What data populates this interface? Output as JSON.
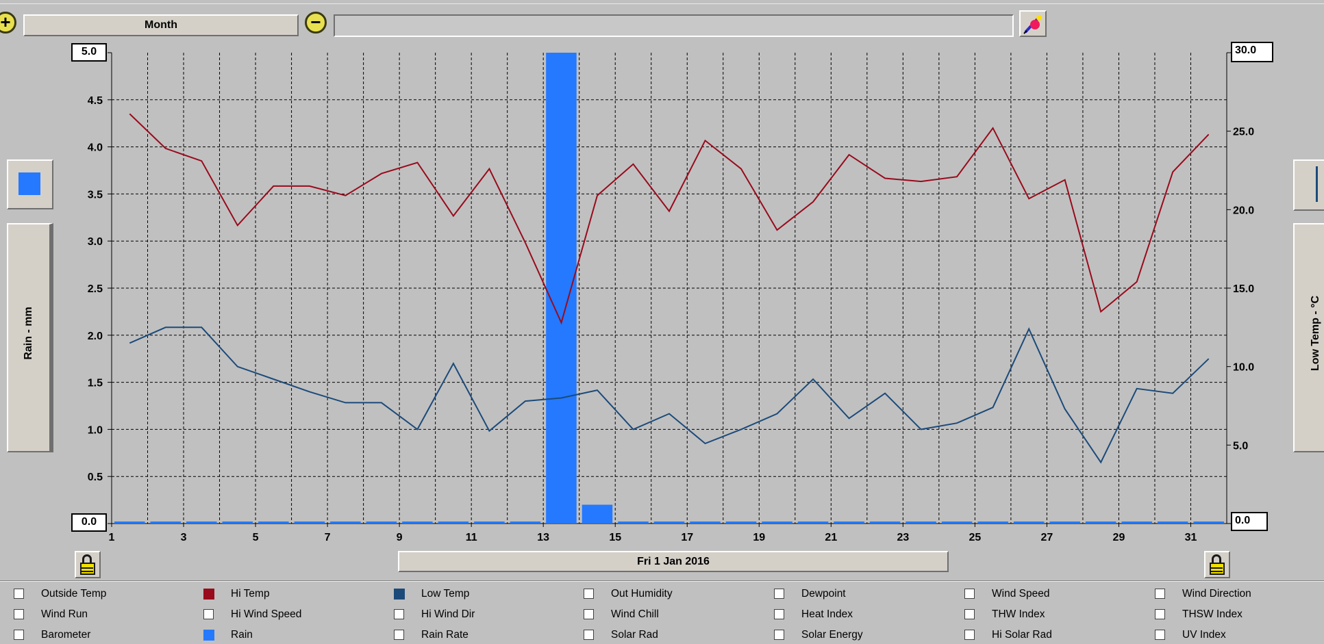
{
  "toolbar": {
    "zoom_in_glyph": "+",
    "period_label": "Month",
    "zoom_out_glyph": "−",
    "status_text": ""
  },
  "left_panel": {
    "swatch_color": "#2479ff",
    "axis_label": "Rain - mm"
  },
  "right_panel": {
    "axis_label": "Low Temp - °C"
  },
  "date_label": "Fri 1 Jan 2016",
  "colors": {
    "hi_temp": "#990a1c",
    "low_temp": "#1b4a7a",
    "rain": "#2479ff"
  },
  "chart_data": {
    "type": "line",
    "x": [
      1,
      2,
      3,
      4,
      5,
      6,
      7,
      8,
      9,
      10,
      11,
      12,
      13,
      14,
      15,
      16,
      17,
      18,
      19,
      20,
      21,
      22,
      23,
      24,
      25,
      26,
      27,
      28,
      29,
      30,
      31
    ],
    "x_ticks": [
      1,
      3,
      5,
      7,
      9,
      11,
      13,
      15,
      17,
      19,
      21,
      23,
      25,
      27,
      29,
      31
    ],
    "xlim": [
      1,
      32
    ],
    "left_axis": {
      "label": "Rain - mm",
      "ylim": [
        0,
        5.0
      ],
      "ticks": [
        "5.0",
        "4.5",
        "4.0",
        "3.5",
        "3.0",
        "2.5",
        "2.0",
        "1.5",
        "1.0",
        "0.5",
        "0.0"
      ]
    },
    "right_axis": {
      "label": "Low Temp - °C",
      "ylim": [
        0,
        30.0
      ],
      "ticks": [
        "30.0",
        "25.0",
        "20.0",
        "15.0",
        "10.0",
        "5.0",
        "0.0"
      ]
    },
    "grid": true,
    "series": [
      {
        "name": "Hi Temp",
        "axis": "right",
        "values": [
          26.1,
          23.9,
          23.1,
          19.0,
          21.5,
          21.5,
          20.9,
          22.3,
          23.0,
          19.6,
          22.6,
          17.9,
          12.8,
          20.9,
          22.9,
          19.9,
          24.4,
          22.6,
          18.7,
          20.5,
          23.5,
          22.0,
          21.8,
          22.1,
          25.2,
          20.7,
          21.9,
          13.5,
          15.4,
          22.4,
          24.8
        ]
      },
      {
        "name": "Low Temp",
        "axis": "right",
        "values": [
          11.5,
          12.5,
          12.5,
          10.0,
          9.2,
          8.4,
          7.7,
          7.7,
          6.0,
          10.2,
          5.9,
          7.8,
          8.0,
          8.5,
          6.0,
          7.0,
          5.1,
          6.0,
          7.0,
          9.2,
          6.7,
          8.3,
          6.0,
          6.4,
          7.4,
          12.4,
          7.3,
          3.9,
          8.6,
          8.3,
          10.5
        ]
      },
      {
        "name": "Rain",
        "axis": "left",
        "type": "bar",
        "values": [
          0,
          0,
          0,
          0,
          0,
          0,
          0,
          0,
          0,
          0,
          0,
          0,
          5.0,
          0.2,
          0,
          0,
          0,
          0,
          0,
          0,
          0,
          0,
          0,
          0,
          0,
          0,
          0,
          0,
          0,
          0,
          0
        ]
      }
    ]
  },
  "legend": {
    "rows": [
      [
        {
          "label": "Outside Temp",
          "checked": false,
          "color": null
        },
        {
          "label": "Hi Temp",
          "checked": true,
          "color": "#990a1c"
        },
        {
          "label": "Low Temp",
          "checked": true,
          "color": "#1b4a7a"
        },
        {
          "label": "Out Humidity",
          "checked": false,
          "color": null
        },
        {
          "label": "Dewpoint",
          "checked": false,
          "color": null
        },
        {
          "label": "Wind Speed",
          "checked": false,
          "color": null
        },
        {
          "label": "Wind Direction",
          "checked": false,
          "color": null
        }
      ],
      [
        {
          "label": "Wind Run",
          "checked": false,
          "color": null
        },
        {
          "label": "Hi Wind Speed",
          "checked": false,
          "color": null
        },
        {
          "label": "Hi Wind Dir",
          "checked": false,
          "color": null
        },
        {
          "label": "Wind Chill",
          "checked": false,
          "color": null
        },
        {
          "label": "Heat Index",
          "checked": false,
          "color": null
        },
        {
          "label": "THW Index",
          "checked": false,
          "color": null
        },
        {
          "label": "THSW Index",
          "checked": false,
          "color": null
        }
      ],
      [
        {
          "label": "Barometer",
          "checked": false,
          "color": null
        },
        {
          "label": "Rain",
          "checked": true,
          "color": "#2479ff"
        },
        {
          "label": "Rain Rate",
          "checked": false,
          "color": null
        },
        {
          "label": "Solar Rad",
          "checked": false,
          "color": null
        },
        {
          "label": "Solar Energy",
          "checked": false,
          "color": null
        },
        {
          "label": "Hi Solar Rad",
          "checked": false,
          "color": null
        },
        {
          "label": "UV Index",
          "checked": false,
          "color": null
        }
      ]
    ]
  }
}
